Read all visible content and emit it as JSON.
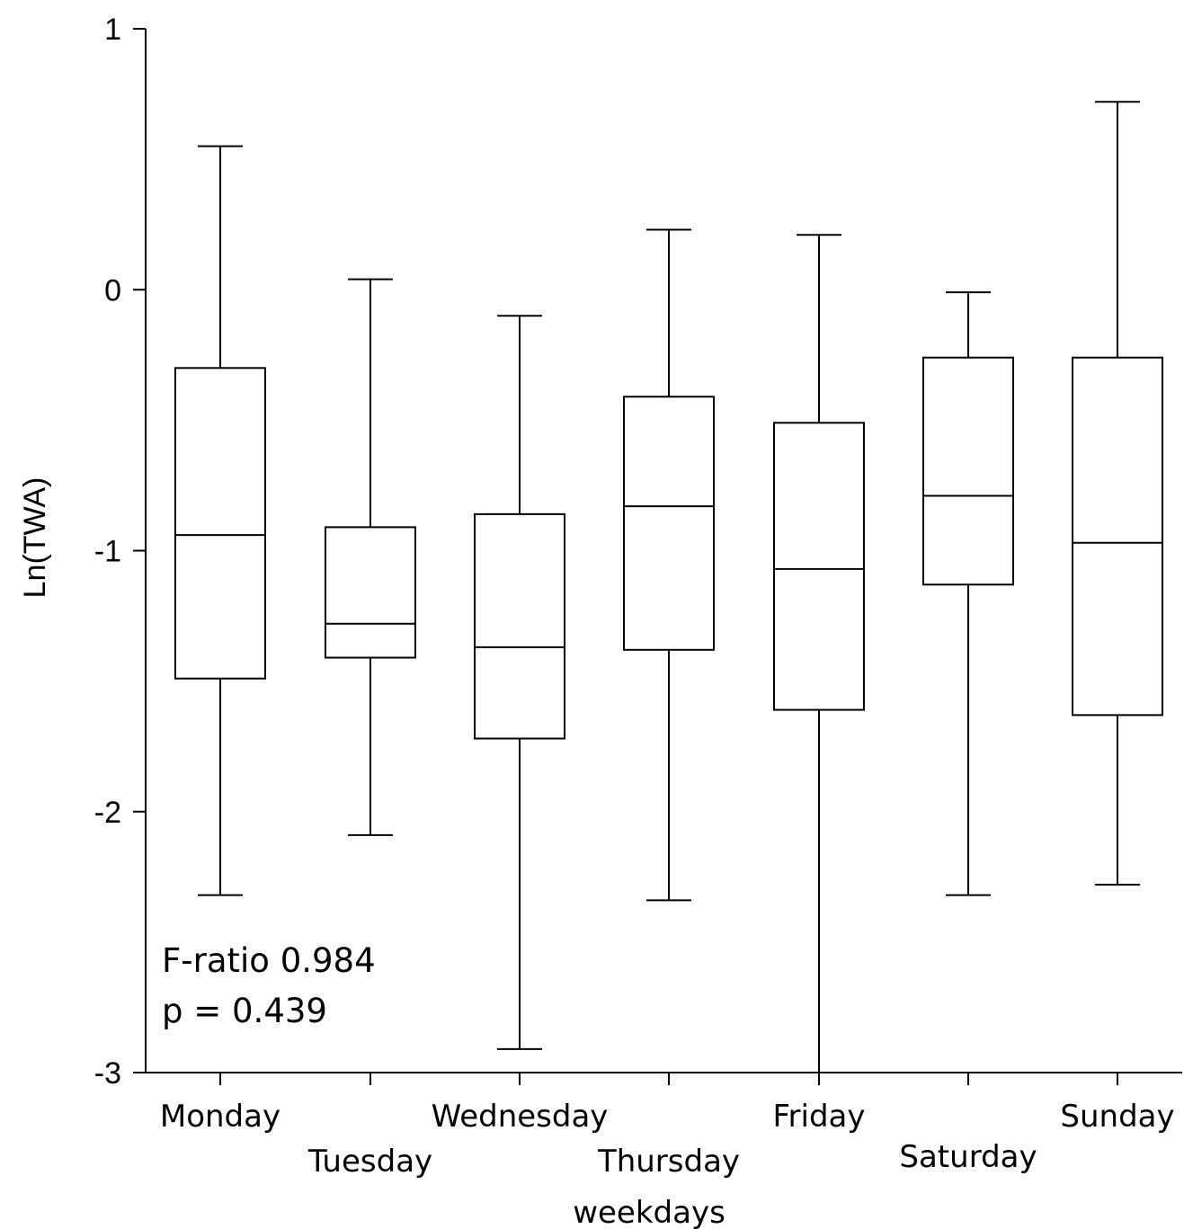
{
  "chart_data": {
    "type": "box",
    "xlabel": "weekdays",
    "ylabel": "Ln(TWA)",
    "ylim": [
      -3,
      1
    ],
    "yticks": [
      "1",
      "0",
      "-1",
      "-2",
      "-3"
    ],
    "grid": false,
    "categories": [
      "Monday",
      "Tuesday",
      "Wednesday",
      "Thursday",
      "Friday",
      "Saturday",
      "Sunday"
    ],
    "boxes": [
      {
        "min": -2.32,
        "q1": -1.49,
        "median": -0.94,
        "q3": -0.3,
        "max": 0.55
      },
      {
        "min": -2.09,
        "q1": -1.41,
        "median": -1.28,
        "q3": -0.91,
        "max": 0.04
      },
      {
        "min": -2.91,
        "q1": -1.72,
        "median": -1.37,
        "q3": -0.86,
        "max": -0.1
      },
      {
        "min": -2.34,
        "q1": -1.38,
        "median": -0.83,
        "q3": -0.41,
        "max": 0.23
      },
      {
        "min": -3.0,
        "q1": -1.61,
        "median": -1.07,
        "q3": -0.51,
        "max": 0.21
      },
      {
        "min": -2.32,
        "q1": -1.13,
        "median": -0.79,
        "q3": -0.26,
        "max": -0.01
      },
      {
        "min": -2.28,
        "q1": -1.63,
        "median": -0.97,
        "q3": -0.26,
        "max": 0.72
      }
    ],
    "annotations": [
      "F-ratio 0.984",
      "p = 0.439"
    ]
  }
}
